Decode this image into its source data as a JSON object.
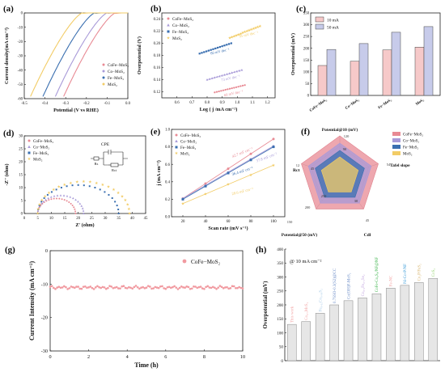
{
  "colors": {
    "cofe": "#e88a94",
    "co": "#a89ad8",
    "fe": "#3a6fb0",
    "mos2": "#f2cc66",
    "bar10": "#f6c9c9",
    "bar50": "#c7cbea",
    "stability": "#f19aa0"
  },
  "panels": {
    "a": {
      "label": "(a)"
    },
    "b": {
      "label": "(b)"
    },
    "c": {
      "label": "(c)"
    },
    "d": {
      "label": "(d)"
    },
    "e": {
      "label": "(e)"
    },
    "f": {
      "label": "(f)"
    },
    "g": {
      "label": "(g)"
    },
    "h": {
      "label": "(h)"
    }
  },
  "chart_data": [
    {
      "panel": "a",
      "type": "line",
      "xlabel": "Potential (V vs RHE)",
      "ylabel": "Current density(mA cm⁻²)",
      "xlim": [
        -0.5,
        0.0
      ],
      "ylim": [
        -60,
        0
      ],
      "xticks": [
        "-0.5",
        "-0.4",
        "-0.3",
        "-0.2",
        "-0.1",
        "0.0"
      ],
      "yticks": [
        "0",
        "-10",
        "-20",
        "-30",
        "-40",
        "-50",
        "-60"
      ],
      "legend_position": "bottom-right",
      "series": [
        {
          "name": "CoFe−MoS₂",
          "color_key": "cofe",
          "onset": -0.06,
          "slope": 400
        },
        {
          "name": "Co−MoS₂",
          "color_key": "co",
          "onset": -0.1,
          "slope": 400
        },
        {
          "name": "Fe−MoS₂",
          "color_key": "fe",
          "onset": -0.16,
          "slope": 400
        },
        {
          "name": "MoS₂",
          "color_key": "mos2",
          "onset": -0.22,
          "slope": 400
        }
      ]
    },
    {
      "panel": "b",
      "type": "scatter",
      "xlabel": "Log ( j /mA cm⁻²)",
      "ylabel": "Overpotential (V)",
      "xlim": [
        0.5,
        1.25
      ],
      "ylim": [
        0.11,
        0.25
      ],
      "xticks": [
        "0.6",
        "0.7",
        "0.8",
        "0.9",
        "1.0",
        "1.1",
        "1.2"
      ],
      "yticks": [
        "0.12",
        "0.14",
        "0.16",
        "0.18",
        "0.20",
        "0.22",
        "0.24"
      ],
      "legend_position": "top-left",
      "series": [
        {
          "name": "CoFe−MoS₂",
          "color_key": "cofe",
          "x": [
            0.85,
            1.05
          ],
          "y": [
            0.119,
            0.131
          ],
          "annotation": "60 mV dec⁻¹"
        },
        {
          "name": "Co−MoS₂",
          "color_key": "co",
          "x": [
            0.8,
            1.03
          ],
          "y": [
            0.14,
            0.156
          ],
          "annotation": "73 mV dec⁻¹"
        },
        {
          "name": "Fe−MoS₂",
          "color_key": "fe",
          "x": [
            0.75,
            0.96
          ],
          "y": [
            0.183,
            0.2
          ],
          "annotation": "80 mV dec⁻¹"
        },
        {
          "name": "MoS₂",
          "color_key": "mos2",
          "x": [
            0.95,
            1.15
          ],
          "y": [
            0.209,
            0.228
          ],
          "annotation": "95 mV dec⁻¹"
        }
      ]
    },
    {
      "panel": "c",
      "type": "bar",
      "xlabel": "",
      "ylabel": "Overpotential (mV)",
      "ylim": [
        0,
        350
      ],
      "yticks": [
        "0",
        "50",
        "100",
        "150",
        "200",
        "250",
        "300",
        "350"
      ],
      "legend_position": "top-left",
      "categories": [
        "CoFe−MoS₂",
        "Co−MoS₂",
        "Fe−MoS₂",
        "MoS₂"
      ],
      "series": [
        {
          "name": "10 mA",
          "color_key": "bar10",
          "values": [
            127,
            145,
            193,
            205
          ]
        },
        {
          "name": "50 mA",
          "color_key": "bar50",
          "values": [
            195,
            220,
            268,
            292
          ]
        }
      ]
    },
    {
      "panel": "d",
      "type": "scatter",
      "xlabel": "Z' (ohm)",
      "ylabel": "-Z'' (ohm)",
      "xlim": [
        0,
        45
      ],
      "ylim": [
        0,
        30
      ],
      "xticks": [
        "0",
        "5",
        "10",
        "15",
        "20",
        "25",
        "30",
        "35",
        "40",
        "45"
      ],
      "yticks": [
        "0",
        "5",
        "10",
        "15",
        "20",
        "25",
        "30"
      ],
      "legend_position": "top-left",
      "inset_title": "CPE",
      "inset_labels": [
        "Rs",
        "Rct"
      ],
      "series": [
        {
          "name": "CoFe−MoS₂",
          "color_key": "cofe",
          "x_start": 5,
          "x_end": 19,
          "peak": 5.8
        },
        {
          "name": "Co−MoS₂",
          "color_key": "co",
          "x_start": 5,
          "x_end": 22,
          "peak": 7.0
        },
        {
          "name": "Fe−MoS₂",
          "color_key": "fe",
          "x_start": 5,
          "x_end": 35,
          "peak": 11.0
        },
        {
          "name": "MoS₂",
          "color_key": "mos2",
          "x_start": 5,
          "x_end": 39,
          "peak": 12.3
        }
      ]
    },
    {
      "panel": "e",
      "type": "scatter",
      "xlabel": "Scan rate (mV s⁻¹)",
      "ylabel": "j (mA cm⁻²)",
      "xlim": [
        10,
        110
      ],
      "ylim": [
        0.0,
        1.0
      ],
      "xticks": [
        "20",
        "40",
        "60",
        "80",
        "100"
      ],
      "yticks": [
        "0.0",
        "0.2",
        "0.4",
        "0.6",
        "0.8",
        "1.0"
      ],
      "legend_position": "top-left",
      "x": [
        20,
        40,
        60,
        80,
        100
      ],
      "series": [
        {
          "name": "CoFe−MoS₂",
          "color_key": "cofe",
          "values": [
            0.21,
            0.38,
            0.55,
            0.72,
            0.89
          ],
          "annotation": "42.7 mF cm⁻²"
        },
        {
          "name": "Co−MoS₂",
          "color_key": "co",
          "values": [
            0.21,
            0.36,
            0.51,
            0.66,
            0.81
          ],
          "annotation": "37.8 mF cm⁻²"
        },
        {
          "name": "Fe−MoS₂",
          "color_key": "fe",
          "values": [
            0.2,
            0.35,
            0.5,
            0.65,
            0.8
          ],
          "annotation": "36.4 mF cm⁻²"
        },
        {
          "name": "MoS₂",
          "color_key": "mos2",
          "values": [
            0.15,
            0.26,
            0.37,
            0.48,
            0.59
          ],
          "annotation": "28.6 mF cm⁻²"
        }
      ]
    },
    {
      "panel": "f",
      "type": "radar",
      "axes": [
        {
          "name": "Potential@10 (mV)",
          "min": 90,
          "max": 120
        },
        {
          "name": "Tafel slope",
          "min": 0,
          "max": 54
        },
        {
          "name": "Cdl",
          "min": 0,
          "max": 45
        },
        {
          "name": "Potential@50 (mV)",
          "min": 0,
          "max": 150
        },
        {
          "name": "Rct",
          "min": 0,
          "max": 12
        }
      ],
      "tick_labels": [
        "120",
        "90",
        "54",
        "45",
        "30",
        "150",
        "200",
        "250",
        "12",
        "45"
      ],
      "legend_position": "top-right",
      "series": [
        {
          "name": "CoFe−MoS₂",
          "color_key": "cofe",
          "values": [
            1.0,
            1.0,
            1.0,
            1.0,
            1.0
          ]
        },
        {
          "name": "Co−MoS₂",
          "color_key": "co",
          "values": [
            0.82,
            0.82,
            0.82,
            0.82,
            0.82
          ]
        },
        {
          "name": "Fe−MoS₂",
          "color_key": "fe",
          "values": [
            0.64,
            0.64,
            0.64,
            0.64,
            0.64
          ]
        },
        {
          "name": "MoS₂",
          "color_key": "mos2",
          "values": [
            0.48,
            0.48,
            0.48,
            0.48,
            0.48
          ]
        }
      ]
    },
    {
      "panel": "g",
      "type": "line",
      "xlabel": "Time (h)",
      "ylabel": "Current Intensity (mA cm⁻²)",
      "xlim": [
        0,
        10
      ],
      "ylim": [
        -30,
        0
      ],
      "xticks": [
        "0",
        "2",
        "4",
        "6",
        "8",
        "10"
      ],
      "yticks": [
        "0",
        "-10",
        "-20",
        "-30"
      ],
      "legend_position": "top-right",
      "series": [
        {
          "name": "CoFe−MoS₂",
          "color_key": "stability",
          "value": -11.0
        }
      ]
    },
    {
      "panel": "h",
      "type": "bar",
      "title": "@ 10 mA cm⁻²",
      "xlabel": "",
      "ylabel": "Overpotential (mV)",
      "ylim": [
        0,
        400
      ],
      "yticks": [
        "0",
        "50",
        "100",
        "150",
        "200",
        "250",
        "300",
        "350",
        "400"
      ],
      "categories": [
        "This work",
        "Co₀.₅MoS₂",
        "Fe₀.₀₂Co₀.₉₈S₂",
        "0.7SSO-0.3(S2)@CC",
        "Co(OH)F-MoS₂",
        "Co₀.₆Fe₀.₃Se₂",
        "CoFe-Co₉S₈/NF@NF",
        "Fe-NC",
        "Ni-Co-P/NF",
        "Co₂P/FeS₂",
        "CoS₂"
      ],
      "values": [
        130,
        140,
        170,
        200,
        215,
        225,
        240,
        260,
        270,
        280,
        295
      ],
      "colors": [
        "#f3a6a6",
        "#f3a6a6",
        "#a8cbe8",
        "#6b8cc7",
        "#6b8cc7",
        "#c3a5e0",
        "#3cb44b",
        "#f4a3a3",
        "#3a9bd8",
        "#d8b46e",
        "#98d474"
      ]
    }
  ]
}
